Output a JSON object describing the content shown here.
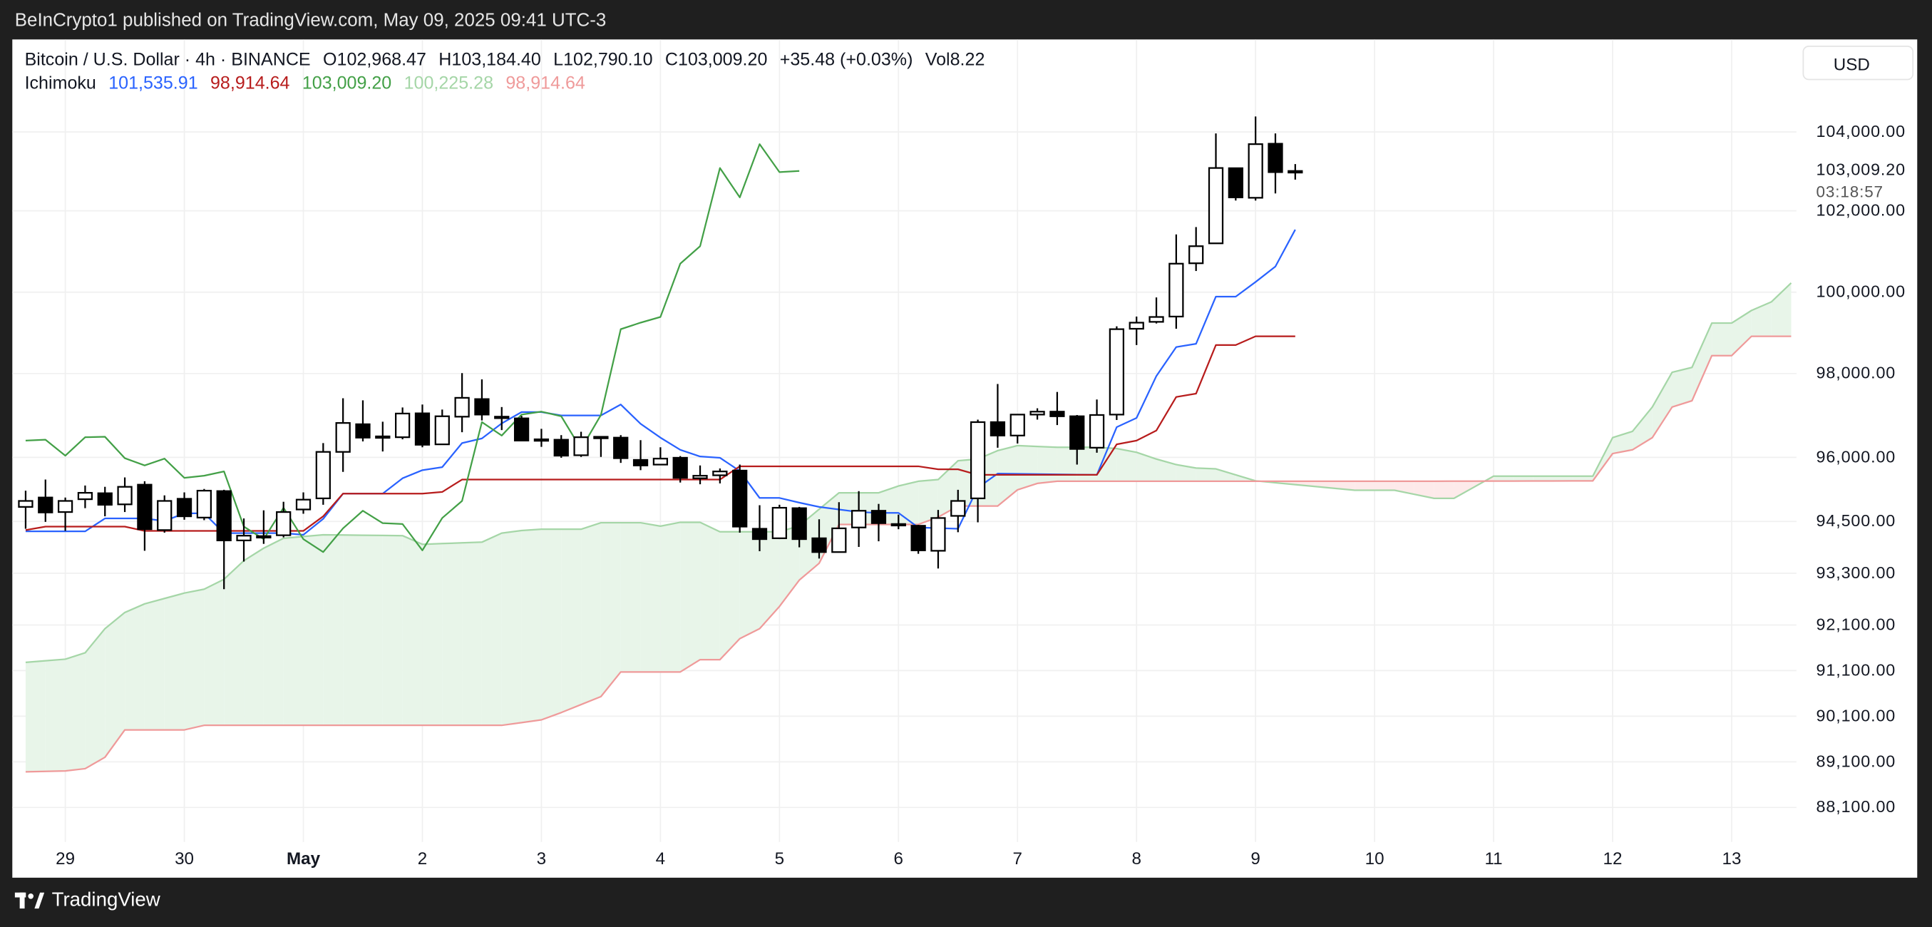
{
  "header": {
    "published": "BeInCrypto1 published on TradingView.com, May 09, 2025 09:41 UTC-3"
  },
  "legend": {
    "symbol": "Bitcoin / U.S. Dollar · 4h · BINANCE",
    "open": "O102,968.47",
    "high": "H103,184.40",
    "low": "L102,790.10",
    "close": "C103,009.20",
    "change": "+35.48 (+0.03%)",
    "volume": "Vol8.22",
    "indicator": "Ichimoku",
    "indicator_values": [
      {
        "value": "101,535.91",
        "color": "#2962ff"
      },
      {
        "value": "98,914.64",
        "color": "#b71c1c"
      },
      {
        "value": "103,009.20",
        "color": "#43a047"
      },
      {
        "value": "100,225.28",
        "color": "#a5d6a7"
      },
      {
        "value": "98,914.64",
        "color": "#ef9a9a"
      }
    ]
  },
  "price_axis": {
    "currency": "USD",
    "last_price": "103,009.20",
    "countdown": "03:18:57"
  },
  "footer": {
    "brand": "TradingView"
  },
  "chart_data": {
    "type": "candlestick",
    "title": "Bitcoin / U.S. Dollar · 4h · BINANCE",
    "interval_hours": 4,
    "x_tick_labels": [
      "29",
      "30",
      "May",
      "2",
      "3",
      "4",
      "5",
      "6",
      "7",
      "8",
      "9",
      "10",
      "11",
      "12",
      "13"
    ],
    "x_tick_candle_index": [
      2,
      8,
      14,
      20,
      26,
      32,
      38,
      44,
      50,
      56,
      62,
      68,
      74,
      80,
      86
    ],
    "y_ticks": [
      104000,
      102000,
      100000,
      98000,
      96000,
      94500,
      93300,
      92100,
      91100,
      90100,
      89100,
      88100
    ],
    "y_tick_labels": [
      "104,000.00",
      "102,000.00",
      "100,000.00",
      "98,000.00",
      "96,000.00",
      "94,500.00",
      "93,300.00",
      "92,100.00",
      "91,100.00",
      "90,100.00",
      "89,100.00",
      "88,100.00"
    ],
    "ylim": [
      87500,
      104700
    ],
    "grid": true,
    "candles_ohlc": [
      [
        94840,
        95220,
        94330,
        94980
      ],
      [
        95060,
        95480,
        94490,
        94710
      ],
      [
        94720,
        95060,
        94280,
        94980
      ],
      [
        95020,
        95340,
        94810,
        95170
      ],
      [
        95160,
        95310,
        94620,
        94890
      ],
      [
        94900,
        95530,
        94720,
        95310
      ],
      [
        95360,
        95440,
        93820,
        94320
      ],
      [
        94300,
        95110,
        94240,
        94980
      ],
      [
        95030,
        95180,
        94540,
        94620
      ],
      [
        94590,
        95260,
        94530,
        95220
      ],
      [
        95210,
        95240,
        92930,
        94060
      ],
      [
        94060,
        94570,
        93570,
        94170
      ],
      [
        94150,
        94760,
        93980,
        94160
      ],
      [
        94180,
        94960,
        94130,
        94720
      ],
      [
        94780,
        95180,
        94680,
        95010
      ],
      [
        95040,
        96340,
        94890,
        96130
      ],
      [
        96130,
        97410,
        95660,
        96820
      ],
      [
        96790,
        97360,
        96380,
        96470
      ],
      [
        96490,
        96850,
        96140,
        96500
      ],
      [
        96480,
        97190,
        96430,
        97045
      ],
      [
        97050,
        97260,
        96240,
        96300
      ],
      [
        96310,
        97140,
        96300,
        96980
      ],
      [
        96970,
        98010,
        96600,
        97420
      ],
      [
        97390,
        97860,
        96880,
        97020
      ],
      [
        96970,
        97200,
        96650,
        96960
      ],
      [
        96930,
        96990,
        96400,
        96400
      ],
      [
        96430,
        96680,
        96250,
        96420
      ],
      [
        96420,
        96530,
        95990,
        96040
      ],
      [
        96050,
        96610,
        96010,
        96480
      ],
      [
        96490,
        96500,
        96010,
        96490
      ],
      [
        96470,
        96530,
        95870,
        95980
      ],
      [
        95940,
        96410,
        95700,
        95810
      ],
      [
        95830,
        96240,
        95830,
        95970
      ],
      [
        95990,
        96030,
        95410,
        95520
      ],
      [
        95510,
        95810,
        95370,
        95570
      ],
      [
        95580,
        95740,
        95390,
        95670
      ],
      [
        95690,
        95830,
        94240,
        94380
      ],
      [
        94330,
        94880,
        93810,
        94090
      ],
      [
        94110,
        94890,
        94090,
        94820
      ],
      [
        94810,
        94840,
        93900,
        94090
      ],
      [
        94110,
        94550,
        93640,
        93790
      ],
      [
        93790,
        94950,
        93790,
        94340
      ],
      [
        94360,
        95210,
        93910,
        94750
      ],
      [
        94750,
        94910,
        94040,
        94460
      ],
      [
        94430,
        94660,
        94320,
        94440
      ],
      [
        94400,
        94420,
        93750,
        93830
      ],
      [
        93820,
        94770,
        93410,
        94580
      ],
      [
        94630,
        95240,
        94250,
        94980
      ],
      [
        95040,
        96900,
        94480,
        96840
      ],
      [
        96840,
        97750,
        96230,
        96520
      ],
      [
        96520,
        97020,
        96330,
        97020
      ],
      [
        97020,
        97170,
        96900,
        97090
      ],
      [
        97090,
        97560,
        96770,
        96980
      ],
      [
        96980,
        97010,
        95830,
        96200
      ],
      [
        96230,
        97380,
        96110,
        97010
      ],
      [
        97020,
        99160,
        96890,
        99090
      ],
      [
        99100,
        99400,
        98700,
        99250
      ],
      [
        99270,
        99870,
        99230,
        99390
      ],
      [
        99400,
        101420,
        99100,
        100700
      ],
      [
        100710,
        101600,
        100520,
        101130
      ],
      [
        101200,
        103960,
        101200,
        103085
      ],
      [
        103080,
        103090,
        102260,
        102340
      ],
      [
        102330,
        104390,
        102260,
        103690
      ],
      [
        103700,
        103960,
        102440,
        102980
      ],
      [
        102968.47,
        103184.4,
        102790.1,
        103009.2
      ]
    ],
    "ichimoku": {
      "displacement": 26,
      "conversion_line": [
        [
          0,
          94270
        ],
        [
          3,
          94270
        ],
        [
          4,
          94570
        ],
        [
          6,
          94570
        ],
        [
          7,
          94510
        ],
        [
          8,
          94690
        ],
        [
          9,
          94690
        ],
        [
          10,
          94230
        ],
        [
          13,
          94230
        ],
        [
          14,
          94190
        ],
        [
          15,
          94560
        ],
        [
          16,
          95150
        ],
        [
          18,
          95150
        ],
        [
          19,
          95510
        ],
        [
          20,
          95700
        ],
        [
          21,
          95770
        ],
        [
          22,
          96340
        ],
        [
          23,
          96450
        ],
        [
          24,
          96810
        ],
        [
          25,
          97080
        ],
        [
          26,
          97080
        ],
        [
          27,
          97000
        ],
        [
          29,
          97000
        ],
        [
          30,
          97260
        ],
        [
          31,
          96800
        ],
        [
          32,
          96470
        ],
        [
          33,
          96180
        ],
        [
          34,
          96020
        ],
        [
          35,
          95990
        ],
        [
          36,
          95680
        ],
        [
          37,
          95050
        ],
        [
          38,
          95050
        ],
        [
          39,
          94940
        ],
        [
          40,
          94840
        ],
        [
          42,
          94720
        ],
        [
          43,
          94700
        ],
        [
          44,
          94700
        ],
        [
          45,
          94360
        ],
        [
          47,
          94330
        ],
        [
          48,
          95290
        ],
        [
          49,
          95620
        ],
        [
          54,
          95590
        ],
        [
          55,
          96720
        ],
        [
          56,
          96940
        ],
        [
          57,
          97940
        ],
        [
          58,
          98650
        ],
        [
          59,
          98730
        ],
        [
          60,
          99890
        ],
        [
          61,
          99890
        ],
        [
          62,
          100250
        ],
        [
          63,
          100630
        ],
        [
          64,
          101535.91
        ]
      ],
      "base_line": [
        [
          0,
          94300
        ],
        [
          1,
          94380
        ],
        [
          5,
          94380
        ],
        [
          6,
          94280
        ],
        [
          14,
          94280
        ],
        [
          15,
          94620
        ],
        [
          16,
          95150
        ],
        [
          20,
          95150
        ],
        [
          21,
          95190
        ],
        [
          22,
          95480
        ],
        [
          35,
          95480
        ],
        [
          36,
          95790
        ],
        [
          45,
          95790
        ],
        [
          46,
          95720
        ],
        [
          47,
          95720
        ],
        [
          48,
          95590
        ],
        [
          54,
          95590
        ],
        [
          55,
          96310
        ],
        [
          56,
          96400
        ],
        [
          57,
          96640
        ],
        [
          58,
          97440
        ],
        [
          59,
          97520
        ],
        [
          60,
          98700
        ],
        [
          61,
          98700
        ],
        [
          62,
          98914.64
        ],
        [
          64,
          98914.64
        ]
      ],
      "leading_span_a": [
        [
          0,
          91280
        ],
        [
          2,
          91350
        ],
        [
          3,
          91490
        ],
        [
          4,
          92020
        ],
        [
          5,
          92390
        ],
        [
          6,
          92590
        ],
        [
          8,
          92840
        ],
        [
          9,
          92930
        ],
        [
          10,
          93160
        ],
        [
          11,
          93590
        ],
        [
          12,
          93880
        ],
        [
          13,
          94110
        ],
        [
          15,
          94190
        ],
        [
          19,
          94170
        ],
        [
          20,
          93970
        ],
        [
          23,
          94020
        ],
        [
          24,
          94230
        ],
        [
          25,
          94290
        ],
        [
          26,
          94320
        ],
        [
          28,
          94320
        ],
        [
          29,
          94470
        ],
        [
          31,
          94470
        ],
        [
          32,
          94390
        ],
        [
          33,
          94480
        ],
        [
          34,
          94480
        ],
        [
          35,
          94260
        ],
        [
          38,
          94260
        ],
        [
          39,
          94400
        ],
        [
          41,
          95170
        ],
        [
          43,
          95170
        ],
        [
          44,
          95330
        ],
        [
          45,
          95440
        ],
        [
          46,
          95480
        ],
        [
          47,
          95920
        ],
        [
          48,
          95960
        ],
        [
          49,
          96160
        ],
        [
          50,
          96280
        ],
        [
          52,
          96240
        ],
        [
          54,
          96240
        ],
        [
          55,
          96210
        ],
        [
          56,
          96120
        ],
        [
          57,
          95960
        ],
        [
          58,
          95830
        ],
        [
          59,
          95750
        ],
        [
          60,
          95730
        ],
        [
          61,
          95590
        ],
        [
          62,
          95450
        ],
        [
          67,
          95230
        ],
        [
          69,
          95230
        ],
        [
          71,
          95040
        ],
        [
          72,
          95040
        ],
        [
          74,
          95560
        ],
        [
          79,
          95560
        ],
        [
          80,
          96470
        ],
        [
          81,
          96620
        ],
        [
          82,
          97200
        ],
        [
          83,
          98030
        ],
        [
          84,
          98150
        ],
        [
          85,
          99240
        ],
        [
          86,
          99240
        ],
        [
          87,
          99550
        ],
        [
          88,
          99760
        ],
        [
          89,
          100225.28
        ]
      ],
      "leading_span_b": [
        [
          0,
          88880
        ],
        [
          2,
          88900
        ],
        [
          3,
          88950
        ],
        [
          4,
          89200
        ],
        [
          5,
          89800
        ],
        [
          8,
          89800
        ],
        [
          9,
          89900
        ],
        [
          24,
          89900
        ],
        [
          26,
          90020
        ],
        [
          27,
          90180
        ],
        [
          29,
          90530
        ],
        [
          30,
          91070
        ],
        [
          33,
          91070
        ],
        [
          34,
          91340
        ],
        [
          35,
          91340
        ],
        [
          36,
          91800
        ],
        [
          37,
          92020
        ],
        [
          38,
          92530
        ],
        [
          39,
          93140
        ],
        [
          40,
          93530
        ],
        [
          41,
          94430
        ],
        [
          45,
          94430
        ],
        [
          46,
          94600
        ],
        [
          47,
          94860
        ],
        [
          49,
          94860
        ],
        [
          50,
          95240
        ],
        [
          51,
          95390
        ],
        [
          52,
          95440
        ],
        [
          70,
          95440
        ],
        [
          79,
          95450
        ],
        [
          80,
          96090
        ],
        [
          81,
          96180
        ],
        [
          82,
          96470
        ],
        [
          83,
          97200
        ],
        [
          84,
          97350
        ],
        [
          85,
          98440
        ],
        [
          86,
          98440
        ],
        [
          87,
          98914.64
        ],
        [
          89,
          98914.64
        ]
      ]
    },
    "colors": {
      "conversion": "#2962ff",
      "base": "#b71c1c",
      "lagging": "#43a047",
      "span_a": "#a5d6a7",
      "span_b": "#ef9a9a",
      "cloud_up": "#e8f5e9",
      "cloud_down": "#fdeaea"
    }
  }
}
